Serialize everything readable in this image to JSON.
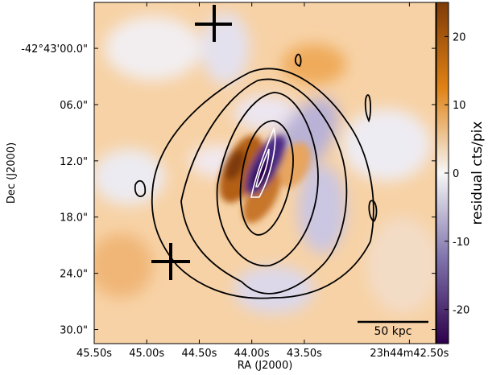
{
  "chart_data": {
    "type": "image",
    "x_label": "RA (J2000)",
    "y_label": "Dec (J2000)",
    "xlim": [
      45.5,
      42.25
    ],
    "xticks": [
      {
        "value": 45.5,
        "label": "45.50s"
      },
      {
        "value": 45.0,
        "label": "45.00s"
      },
      {
        "value": 44.5,
        "label": "44.50s"
      },
      {
        "value": 44.0,
        "label": "44.00s"
      },
      {
        "value": 43.5,
        "label": "43.50s"
      },
      {
        "value": 42.5,
        "label": "23h44m42.50s"
      }
    ],
    "ylim": [
      31.5,
      -4.9
    ],
    "yticks": [
      {
        "value": 0,
        "label": "-42°43'00.0\""
      },
      {
        "value": 6,
        "label": "06.0\""
      },
      {
        "value": 12,
        "label": "12.0\""
      },
      {
        "value": 18,
        "label": "18.0\""
      },
      {
        "value": 24,
        "label": "24.0\""
      },
      {
        "value": 30,
        "label": "30.0\""
      }
    ],
    "colorbar": {
      "label": "residual cts/pix",
      "clim": [
        -25,
        25
      ],
      "ticks": [
        -20,
        -10,
        0,
        10,
        20
      ],
      "colormap": [
        "#2d004b",
        "#8073ac",
        "#f7f7f7",
        "#e08214",
        "#7f3b08"
      ]
    },
    "scale_bar": "50 kpc"
  }
}
